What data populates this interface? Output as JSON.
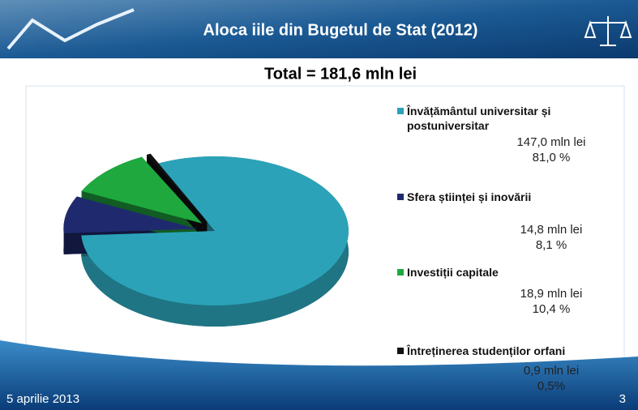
{
  "slide": {
    "title": "Aloca iile din Bugetul de Stat (2012)",
    "date": "5 aprilie 2013",
    "page": "3"
  },
  "chart_data": {
    "type": "pie",
    "title": "Total = 181,6 mln lei",
    "categories": [
      "Învățământul universitar și postuniversitar",
      "Sfera științei și inovării",
      "Investiții capitale",
      "Întreținerea studenților orfani"
    ],
    "values": [
      81.0,
      8.1,
      10.4,
      0.5
    ],
    "value_labels": [
      "81,0 %",
      "8,1 %",
      "10,4 %",
      "0,5%"
    ],
    "amount_labels": [
      "147,0 mln lei",
      "14,8 mln lei",
      "18,9 mln lei",
      "0,9 mln lei"
    ],
    "colors": [
      "#2ba2b8",
      "#1f2a6e",
      "#1ea83e",
      "#111111"
    ]
  }
}
